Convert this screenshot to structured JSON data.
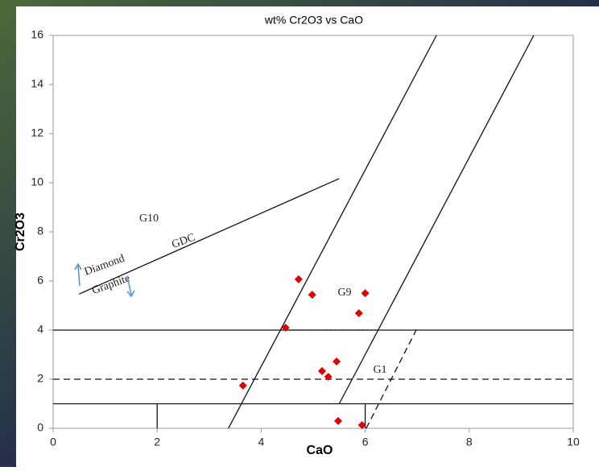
{
  "chart_data": {
    "type": "scatter",
    "title": "wt% Cr2O3 vs CaO",
    "xlabel": "CaO",
    "ylabel": "Cr2O3",
    "xlim": [
      0,
      10
    ],
    "ylim": [
      0,
      16
    ],
    "xticks": [
      0,
      2,
      4,
      6,
      8,
      10
    ],
    "yticks": [
      0,
      2,
      4,
      6,
      8,
      10,
      12,
      14,
      16
    ],
    "series": [
      {
        "color": "#e00000",
        "x": [
          4.72,
          4.98,
          6.0,
          5.88,
          4.47,
          5.45,
          5.17,
          5.29,
          3.65,
          5.48,
          5.94
        ],
        "y": [
          6.07,
          5.44,
          5.5,
          4.69,
          4.1,
          2.72,
          2.33,
          2.1,
          1.74,
          0.3,
          0.13
        ]
      }
    ],
    "reference_lines": [
      {
        "x": [
          0.5,
          5.5
        ],
        "y": [
          5.47,
          10.17
        ],
        "style": "solid"
      },
      {
        "x": [
          0,
          10
        ],
        "y": [
          4,
          4
        ],
        "style": "solid"
      },
      {
        "x": [
          0,
          10
        ],
        "y": [
          2,
          2
        ],
        "style": "dashed"
      },
      {
        "x": [
          0,
          10
        ],
        "y": [
          1,
          1
        ],
        "style": "solid"
      },
      {
        "x": [
          2,
          2
        ],
        "y": [
          0,
          1
        ],
        "style": "solid"
      },
      {
        "x": [
          6,
          6
        ],
        "y": [
          0,
          1
        ],
        "style": "solid"
      },
      {
        "x": [
          3.37,
          7.37
        ],
        "y": [
          0,
          16
        ],
        "style": "solid"
      },
      {
        "x": [
          5.5,
          9.24
        ],
        "y": [
          1,
          16
        ],
        "style": "solid"
      },
      {
        "x": [
          6.02,
          6.98
        ],
        "y": [
          0,
          4
        ],
        "style": "dashed"
      },
      {
        "x": [
          4.47,
          6.25
        ],
        "y": [
          4,
          4
        ],
        "style": "dotted"
      }
    ],
    "annotations": [
      "G10",
      "GDC",
      "Diamond",
      "Graphite",
      "G9",
      "G1"
    ]
  }
}
